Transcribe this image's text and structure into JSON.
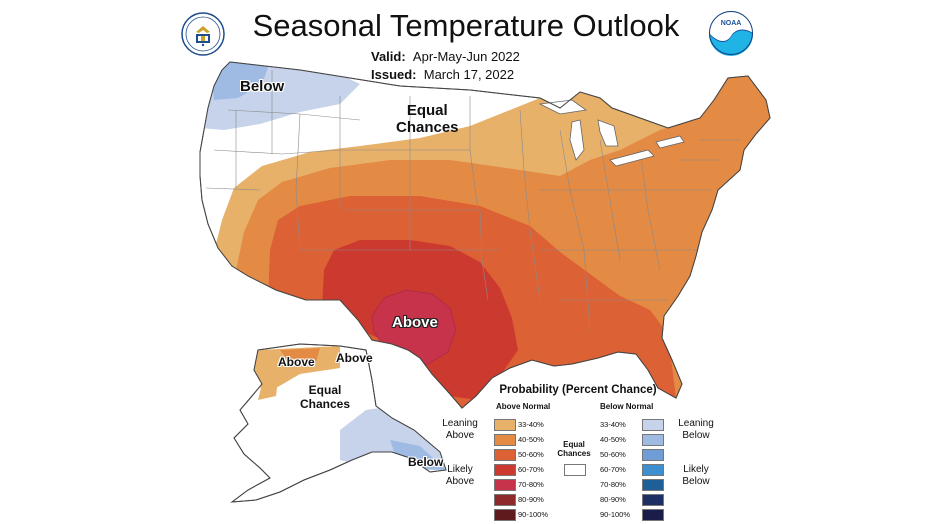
{
  "title": "Seasonal Temperature Outlook",
  "valid_label": "Valid:",
  "valid_value": "Apr-May-Jun 2022",
  "issued_label": "Issued:",
  "issued_value": "March 17, 2022",
  "logos": {
    "left": "us-department-of-commerce-seal",
    "right": "noaa-logo"
  },
  "map_labels": {
    "below_pacific_nw": "Below",
    "equal_chances_north": [
      "Equal",
      "Chances"
    ],
    "above_texas": "Above",
    "alaska_above_west": "Above",
    "alaska_above_north": "Above",
    "alaska_equal_chances": [
      "Equal",
      "Chances"
    ],
    "alaska_below": "Below"
  },
  "legend": {
    "title": "Probability (Percent Chance)",
    "above_header": "Above Normal",
    "below_header": "Below Normal",
    "equal_chances": [
      "Equal",
      "Chances"
    ],
    "leaning_above": [
      "Leaning",
      "Above"
    ],
    "likely_above": [
      "Likely",
      "Above"
    ],
    "leaning_below": [
      "Leaning",
      "Below"
    ],
    "likely_below": [
      "Likely",
      "Below"
    ],
    "above_items": [
      {
        "range": "33-40%",
        "color": "#e8b16a"
      },
      {
        "range": "40-50%",
        "color": "#e38a45"
      },
      {
        "range": "50-60%",
        "color": "#dc6135"
      },
      {
        "range": "60-70%",
        "color": "#cc3a2f"
      },
      {
        "range": "70-80%",
        "color": "#c6334a"
      },
      {
        "range": "80-90%",
        "color": "#8c2a2c"
      },
      {
        "range": "90-100%",
        "color": "#5e1a1c"
      }
    ],
    "below_items": [
      {
        "range": "33-40%",
        "color": "#c6d3ea"
      },
      {
        "range": "40-50%",
        "color": "#9fbbe3"
      },
      {
        "range": "50-60%",
        "color": "#6f9ed6"
      },
      {
        "range": "60-70%",
        "color": "#3d8fd0"
      },
      {
        "range": "70-80%",
        "color": "#1e5f97"
      },
      {
        "range": "80-90%",
        "color": "#1d2f63"
      },
      {
        "range": "90-100%",
        "color": "#1a1c4a"
      }
    ]
  },
  "colors": {
    "above_33_40": "#e8b16a",
    "above_40_50": "#e38a45",
    "above_50_60": "#dc6135",
    "above_60_70": "#cc3a2f",
    "above_70_80": "#c6334a",
    "below_33_40": "#c6d3ea",
    "below_40_50": "#9fbbe3",
    "equal_chances": "#ffffff",
    "state_borders": "#8a8a8a"
  }
}
